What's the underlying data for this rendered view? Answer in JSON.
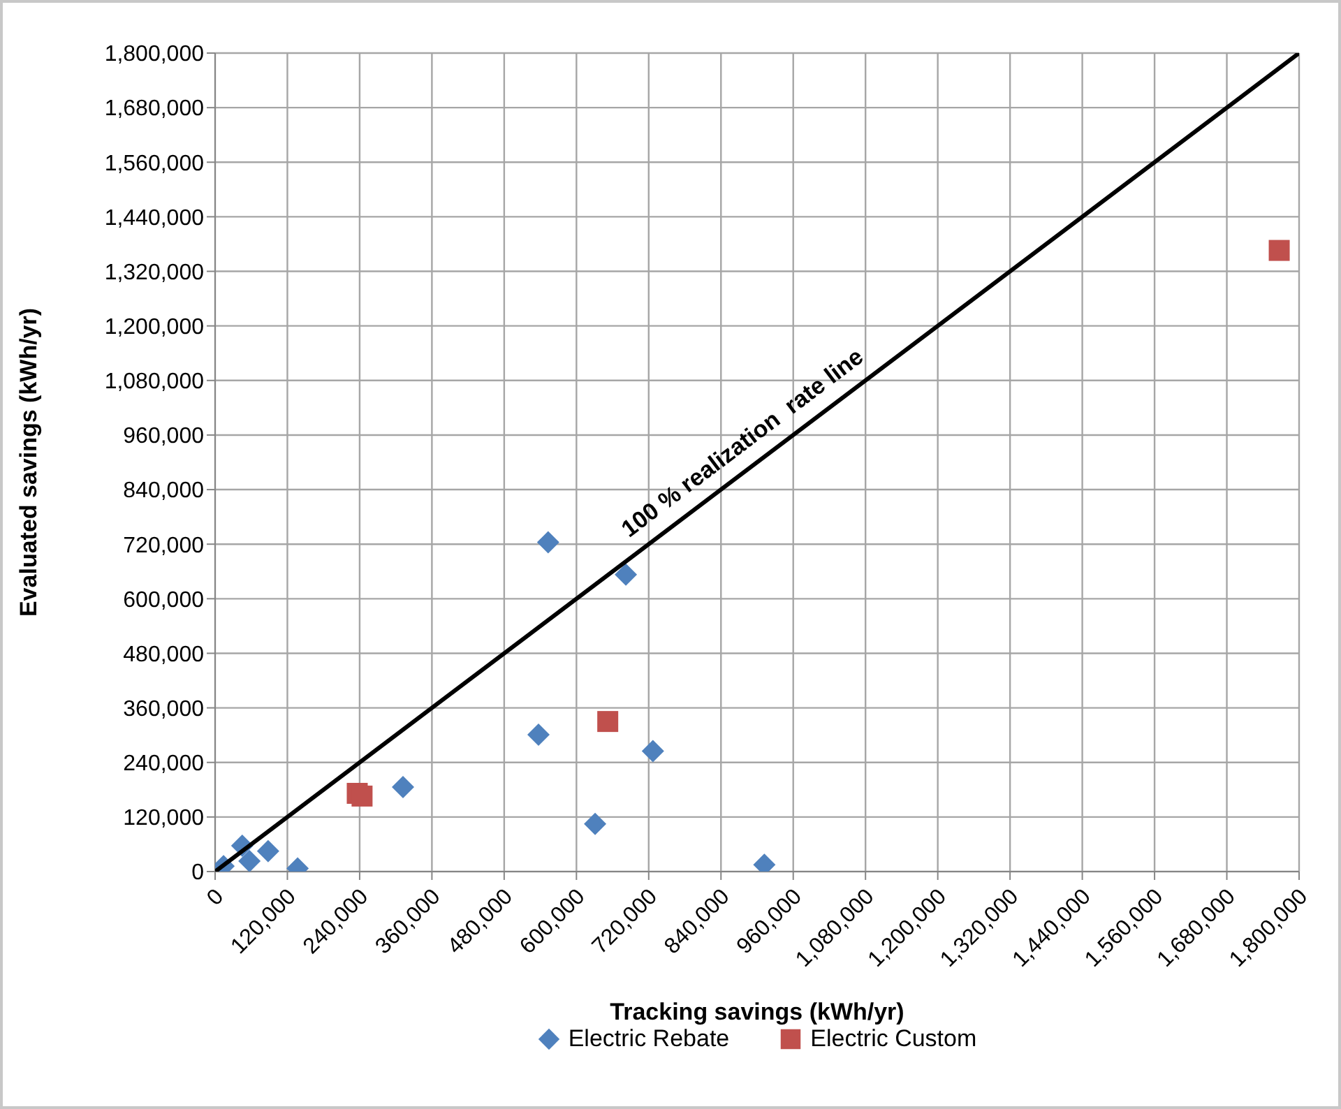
{
  "chart_data": {
    "type": "scatter",
    "xlabel": "Tracking savings (kWh/yr)",
    "ylabel": "Evaluated savings (kWh/yr)",
    "xlim": [
      0,
      1800000
    ],
    "ylim": [
      0,
      1800000
    ],
    "xticks": [
      0,
      {
        "value": 120000,
        "label": "120,000"
      },
      {
        "value": 240000,
        "label": "240,000"
      },
      {
        "value": 360000,
        "label": "360,000"
      },
      {
        "value": 480000,
        "label": "480,000"
      },
      {
        "value": 600000,
        "label": "600,000"
      },
      {
        "value": 720000,
        "label": "720,000"
      },
      {
        "value": 840000,
        "label": "840,000"
      },
      {
        "value": 960000,
        "label": "960,000"
      },
      {
        "value": 1080000,
        "label": "1,080,000"
      },
      {
        "value": 1200000,
        "label": "1,200,000"
      },
      {
        "value": 1320000,
        "label": "1,320,000"
      },
      {
        "value": 1440000,
        "label": "1,440,000"
      },
      {
        "value": 1560000,
        "label": "1,560,000"
      },
      {
        "value": 1680000,
        "label": "1,680,000"
      },
      {
        "value": 1800000,
        "label": "1,800,000"
      }
    ],
    "yticks": [
      0,
      {
        "value": 120000,
        "label": "120,000"
      },
      {
        "value": 240000,
        "label": "240,000"
      },
      {
        "value": 360000,
        "label": "360,000"
      },
      {
        "value": 480000,
        "label": "480,000"
      },
      {
        "value": 600000,
        "label": "600,000"
      },
      {
        "value": 720000,
        "label": "720,000"
      },
      {
        "value": 840000,
        "label": "840,000"
      },
      {
        "value": 960000,
        "label": "960,000"
      },
      {
        "value": 1080000,
        "label": "1,080,000"
      },
      {
        "value": 1200000,
        "label": "1,200,000"
      },
      {
        "value": 1320000,
        "label": "1,320,000"
      },
      {
        "value": 1440000,
        "label": "1,440,000"
      },
      {
        "value": 1560000,
        "label": "1,560,000"
      },
      {
        "value": 1680000,
        "label": "1,680,000"
      },
      {
        "value": 1800000,
        "label": "1,800,000"
      }
    ],
    "grid": true,
    "legend": "bottom",
    "series": [
      {
        "name": "Electric Rebate",
        "color": "#4f81bd",
        "marker": "diamond",
        "x": [
          14000,
          45000,
          57000,
          88000,
          137000,
          312000,
          537000,
          553000,
          631000,
          682000,
          727000,
          912000
        ],
        "values": [
          12000,
          57000,
          23000,
          45000,
          7000,
          186000,
          301000,
          724000,
          105000,
          653000,
          265000,
          15000
        ]
      },
      {
        "name": "Electric Custom",
        "color": "#c0504d",
        "marker": "square",
        "x": [
          236000,
          244000,
          652000,
          1767000
        ],
        "values": [
          172000,
          166000,
          330000,
          1366000
        ]
      },
      {
        "type": "line",
        "color": "#000000",
        "marker": "none",
        "x": [
          0,
          1800000
        ],
        "values": [
          0,
          1800000
        ]
      }
    ],
    "annotations": [
      {
        "text": "100 % realization  rate line",
        "x": 900000,
        "y": 900000
      }
    ]
  }
}
